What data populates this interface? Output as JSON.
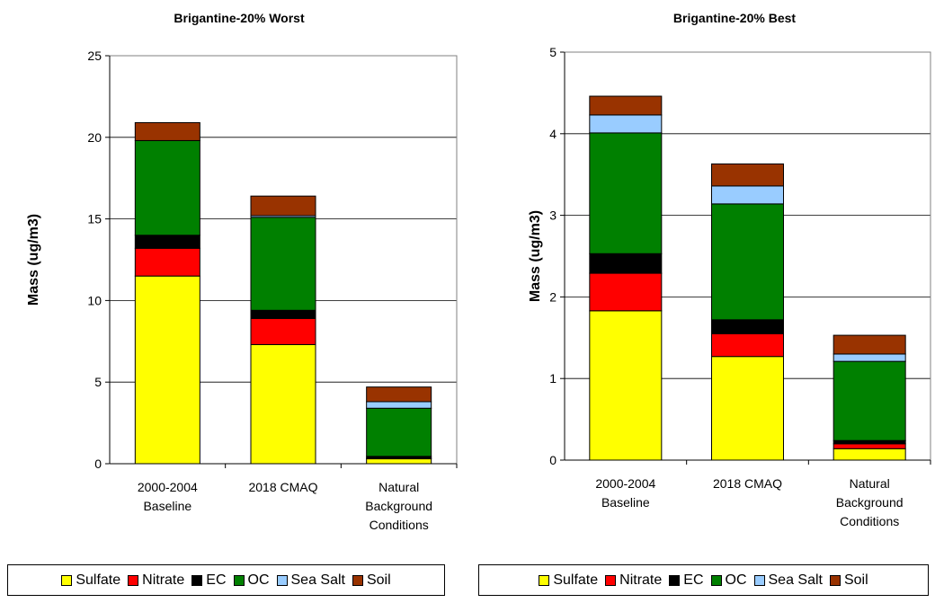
{
  "chart_data": [
    {
      "type": "bar",
      "stacked": true,
      "title": "Brigantine-20% Worst",
      "y_label": "Mass (ug/m3)",
      "categories": [
        "2000-2004 Baseline",
        "2018 CMAQ",
        "Natural Background Conditions"
      ],
      "series": [
        {
          "name": "Sulfate",
          "color": "#ffff00",
          "values": [
            11.5,
            7.3,
            0.3
          ]
        },
        {
          "name": "Nitrate",
          "color": "#ff0000",
          "values": [
            1.7,
            1.6,
            0.05
          ]
        },
        {
          "name": "EC",
          "color": "#000000",
          "values": [
            0.8,
            0.5,
            0.1
          ]
        },
        {
          "name": "OC",
          "color": "#008000",
          "values": [
            5.8,
            5.7,
            2.95
          ]
        },
        {
          "name": "Sea Salt",
          "color": "#99ccff",
          "values": [
            0,
            0.1,
            0.4
          ]
        },
        {
          "name": "Soil",
          "color": "#993300",
          "values": [
            1.1,
            1.2,
            0.9
          ]
        }
      ],
      "ylim": [
        0,
        25
      ],
      "yticks": [
        0,
        5,
        10,
        15,
        20,
        25
      ],
      "grid": true,
      "legend": "bottom"
    },
    {
      "type": "bar",
      "stacked": true,
      "title": "Brigantine-20% Best",
      "y_label": "Mass (ug/m3)",
      "categories": [
        "2000-2004 Baseline",
        "2018 CMAQ",
        "Natural Background Conditions"
      ],
      "series": [
        {
          "name": "Sulfate",
          "color": "#ffff00",
          "values": [
            1.83,
            1.27,
            0.14
          ]
        },
        {
          "name": "Nitrate",
          "color": "#ff0000",
          "values": [
            0.46,
            0.28,
            0.06
          ]
        },
        {
          "name": "EC",
          "color": "#000000",
          "values": [
            0.24,
            0.17,
            0.04
          ]
        },
        {
          "name": "OC",
          "color": "#008000",
          "values": [
            1.48,
            1.42,
            0.97
          ]
        },
        {
          "name": "Sea Salt",
          "color": "#99ccff",
          "values": [
            0.22,
            0.22,
            0.09
          ]
        },
        {
          "name": "Soil",
          "color": "#993300",
          "values": [
            0.23,
            0.27,
            0.23
          ]
        }
      ],
      "ylim": [
        0,
        5
      ],
      "yticks": [
        0,
        1,
        2,
        3,
        4,
        5
      ],
      "grid": true,
      "legend": "bottom"
    }
  ]
}
